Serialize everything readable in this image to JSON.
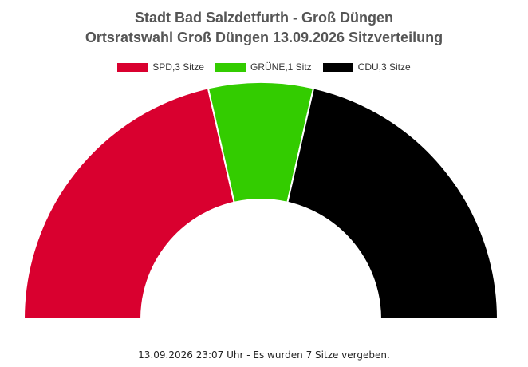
{
  "chart_data": {
    "type": "parliament-semicircle",
    "title": "Stadt Bad Salzdetfurth - Groß Düngen",
    "subtitle": "Ortsratswahl Groß Düngen 13.09.2026 Sitzverteilung",
    "series": [
      {
        "name": "SPD,3 Sitze",
        "party": "SPD",
        "seats": 3,
        "color": "#d9002f"
      },
      {
        "name": "GRÜNE,1 Sitz",
        "party": "GRÜNE",
        "seats": 1,
        "color": "#33cc00"
      },
      {
        "name": "CDU,3 Sitze",
        "party": "CDU",
        "seats": 3,
        "color": "#000000"
      }
    ],
    "total_seats": 7,
    "legend_position": "top-center"
  },
  "footer": "13.09.2026 23:07 Uhr - Es wurden 7 Sitze vergeben."
}
